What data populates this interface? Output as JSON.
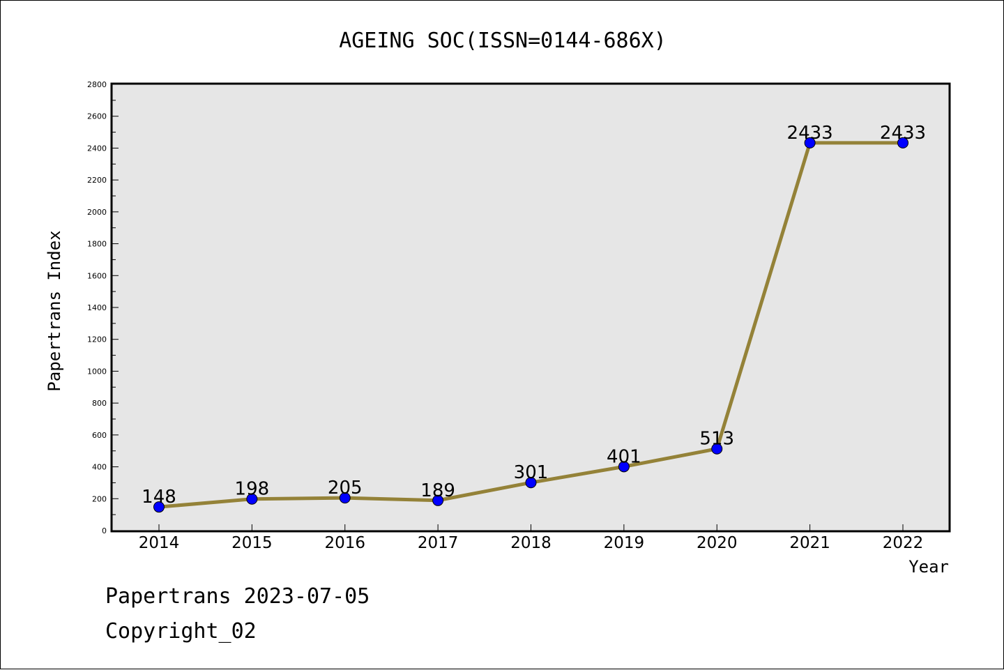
{
  "chart_data": {
    "type": "line",
    "title": "AGEING SOC(ISSN=0144-686X)",
    "xlabel": "Year",
    "ylabel": "Papertrans Index",
    "categories": [
      "2014",
      "2015",
      "2016",
      "2017",
      "2018",
      "2019",
      "2020",
      "2021",
      "2022"
    ],
    "values": [
      148,
      198,
      205,
      189,
      301,
      401,
      513,
      2433,
      2433
    ],
    "data_labels": [
      "148",
      "198",
      "205",
      "189",
      "301",
      "401",
      "513",
      "2433",
      "2433"
    ],
    "ylim": [
      0,
      2800
    ],
    "yticks": [
      "0",
      "200",
      "400",
      "600",
      "800",
      "1000",
      "1200",
      "1400",
      "1600",
      "1800",
      "2000",
      "2200",
      "2400",
      "2600",
      "2800"
    ],
    "grid": false,
    "legend": "none",
    "colors": {
      "line": "#948238",
      "marker": "#0000ff",
      "plot_background": "#e6e6e6"
    }
  },
  "footer": {
    "date_line": "Papertrans 2023-07-05",
    "copyright": "Copyright_02"
  }
}
